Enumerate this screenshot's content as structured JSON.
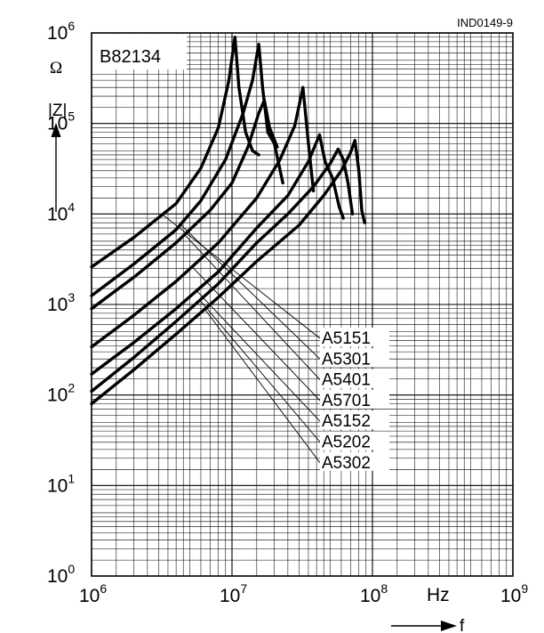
{
  "chart_data": {
    "type": "line",
    "title": "B82134",
    "figure_id": "IND0149-9",
    "xlabel": "f",
    "x_unit": "Hz",
    "ylabel": "|Z|",
    "y_unit": "Ω",
    "x_scale": "log",
    "y_scale": "log",
    "xlim": [
      1000000,
      1000000000
    ],
    "ylim": [
      1,
      1000000
    ],
    "grid": true,
    "x_ticks": [
      {
        "base": "10",
        "exp": "6"
      },
      {
        "base": "10",
        "exp": "7"
      },
      {
        "base": "10",
        "exp": "8"
      },
      {
        "base": "10",
        "exp": "9"
      }
    ],
    "y_ticks": [
      {
        "base": "10",
        "exp": "0"
      },
      {
        "base": "10",
        "exp": "1"
      },
      {
        "base": "10",
        "exp": "2"
      },
      {
        "base": "10",
        "exp": "3"
      },
      {
        "base": "10",
        "exp": "4"
      },
      {
        "base": "10",
        "exp": "5"
      },
      {
        "base": "10",
        "exp": "6"
      }
    ],
    "series": [
      {
        "name": "A5151",
        "points": [
          [
            1000000,
            2600
          ],
          [
            2000000,
            5500
          ],
          [
            4000000,
            13000
          ],
          [
            6000000,
            32000
          ],
          [
            8000000,
            90000
          ],
          [
            9500000,
            300000
          ],
          [
            10500000,
            900000
          ],
          [
            11200000,
            250000
          ],
          [
            12500000,
            80000
          ],
          [
            14000000,
            50000
          ],
          [
            15500000,
            45000
          ]
        ]
      },
      {
        "name": "A5301",
        "points": [
          [
            1000000,
            1250
          ],
          [
            2000000,
            2800
          ],
          [
            4000000,
            6700
          ],
          [
            6000000,
            14000
          ],
          [
            9000000,
            40000
          ],
          [
            12000000,
            130000
          ],
          [
            14000000,
            300000
          ],
          [
            15500000,
            750000
          ],
          [
            16500000,
            250000
          ],
          [
            18000000,
            80000
          ],
          [
            20000000,
            60000
          ],
          [
            23000000,
            22000
          ]
        ]
      },
      {
        "name": "A5401",
        "points": [
          [
            1000000,
            900
          ],
          [
            2000000,
            2000
          ],
          [
            4000000,
            4800
          ],
          [
            7000000,
            11000
          ],
          [
            10000000,
            22000
          ],
          [
            13000000,
            55000
          ],
          [
            15500000,
            130000
          ],
          [
            17000000,
            180000
          ],
          [
            18500000,
            90000
          ],
          [
            21000000,
            55000
          ]
        ]
      },
      {
        "name": "A5701",
        "points": [
          [
            1000000,
            340
          ],
          [
            2000000,
            760
          ],
          [
            4000000,
            1800
          ],
          [
            8000000,
            4800
          ],
          [
            15000000,
            15000
          ],
          [
            22000000,
            40000
          ],
          [
            28000000,
            95000
          ],
          [
            32000000,
            250000
          ],
          [
            35000000,
            60000
          ],
          [
            38000000,
            18000
          ]
        ]
      },
      {
        "name": "A5152",
        "points": [
          [
            1000000,
            170
          ],
          [
            2000000,
            380
          ],
          [
            4000000,
            900
          ],
          [
            8000000,
            2300
          ],
          [
            15000000,
            7000
          ],
          [
            25000000,
            16000
          ],
          [
            35000000,
            38000
          ],
          [
            42000000,
            75000
          ],
          [
            46000000,
            38000
          ],
          [
            52000000,
            25000
          ],
          [
            58000000,
            12000
          ],
          [
            62000000,
            9000
          ]
        ]
      },
      {
        "name": "A5202",
        "points": [
          [
            1000000,
            110
          ],
          [
            2000000,
            260
          ],
          [
            4000000,
            650
          ],
          [
            8000000,
            1700
          ],
          [
            15000000,
            4800
          ],
          [
            25000000,
            10000
          ],
          [
            38000000,
            20000
          ],
          [
            50000000,
            36000
          ],
          [
            57000000,
            52000
          ],
          [
            62000000,
            40000
          ],
          [
            67000000,
            22000
          ],
          [
            72000000,
            10000
          ]
        ]
      },
      {
        "name": "A5302",
        "points": [
          [
            1000000,
            80
          ],
          [
            2000000,
            190
          ],
          [
            4000000,
            470
          ],
          [
            8000000,
            1200
          ],
          [
            15000000,
            3000
          ],
          [
            30000000,
            7500
          ],
          [
            45000000,
            16000
          ],
          [
            60000000,
            30000
          ],
          [
            70000000,
            48000
          ],
          [
            75000000,
            65000
          ],
          [
            80000000,
            30000
          ],
          [
            84000000,
            11000
          ],
          [
            88000000,
            8000
          ]
        ]
      }
    ]
  }
}
